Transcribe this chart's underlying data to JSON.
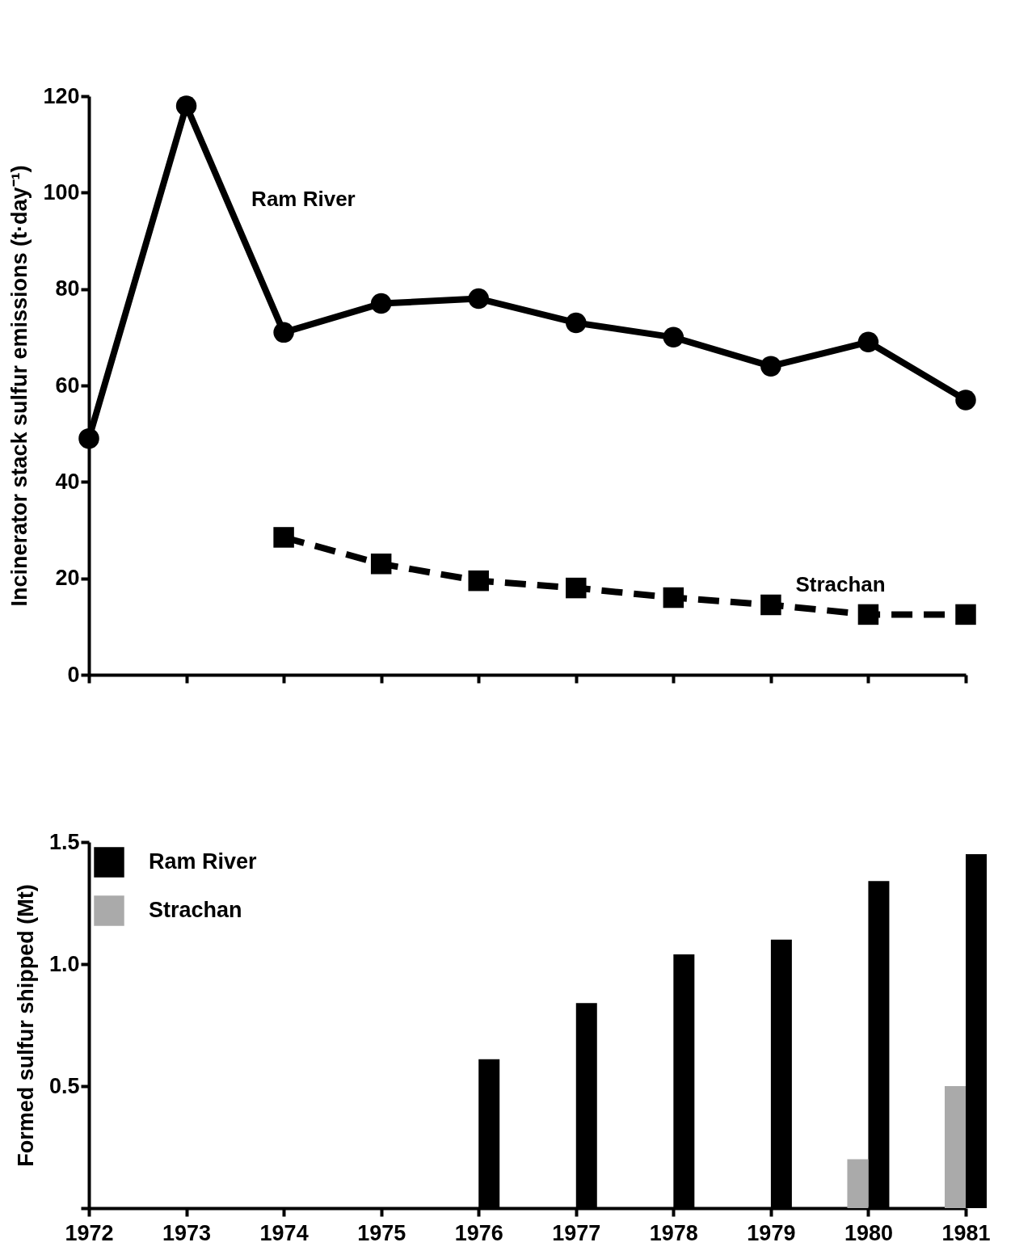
{
  "chart_data": [
    {
      "type": "line",
      "ylabel": "Incinerator stack sulfur emissions (t·day⁻¹)",
      "categories": [
        "1972",
        "1973",
        "1974",
        "1975",
        "1976",
        "1977",
        "1978",
        "1979",
        "1980",
        "1981"
      ],
      "ylim": [
        0,
        120
      ],
      "yticks": [
        0,
        20,
        40,
        60,
        80,
        100,
        120
      ],
      "tick_labels": "y",
      "grid": false,
      "legend": false,
      "series": [
        {
          "name": "Ram River",
          "color": "#000000",
          "marker": "circle",
          "line_style": "solid",
          "values": [
            49,
            118,
            71,
            77,
            78,
            73,
            70,
            64,
            69,
            57
          ]
        },
        {
          "name": "Strachan",
          "color": "#000000",
          "marker": "square",
          "line_style": "dashed",
          "values": [
            null,
            null,
            28.5,
            23,
            19.5,
            18,
            16,
            14.5,
            12.5,
            12.5
          ]
        }
      ]
    },
    {
      "type": "bar",
      "ylabel": "Formed sulfur shipped (Mt)",
      "categories": [
        "1972",
        "1973",
        "1974",
        "1975",
        "1976",
        "1977",
        "1978",
        "1979",
        "1980",
        "1981"
      ],
      "ylim": [
        0,
        1.5
      ],
      "yticks": [
        {
          "value": 0,
          "label": null
        },
        0.5,
        {
          "value": 1,
          "label": "1.0"
        },
        1.5
      ],
      "grid": false,
      "legend": "top left",
      "series": [
        {
          "name": "Ram River",
          "color": "#000000",
          "values": [
            null,
            null,
            null,
            null,
            0.61,
            0.84,
            1.04,
            1.1,
            1.34,
            1.45
          ]
        },
        {
          "name": "Strachan",
          "color": "#aaaaaa",
          "values": [
            null,
            null,
            null,
            null,
            null,
            null,
            null,
            null,
            0.2,
            0.5
          ]
        }
      ]
    }
  ]
}
